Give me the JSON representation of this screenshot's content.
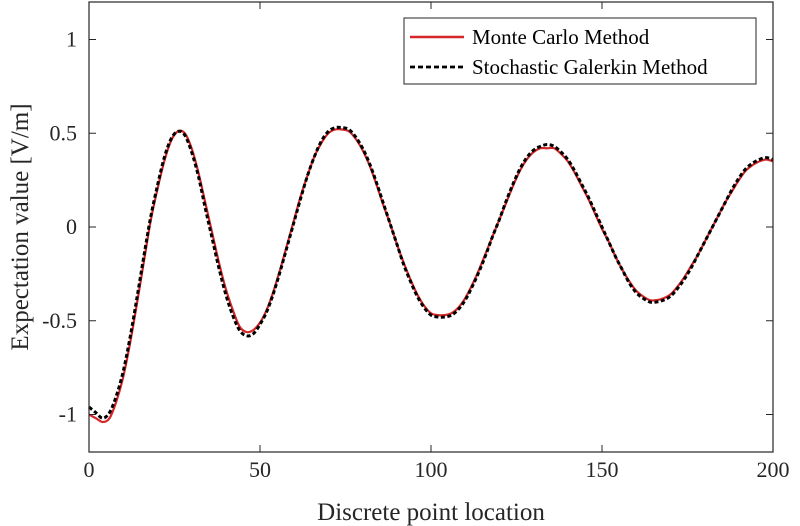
{
  "chart_data": {
    "type": "line",
    "xlabel": "Discrete point location",
    "ylabel": "Expectation value [V/m]",
    "xlim": [
      0,
      200
    ],
    "ylim": [
      -1.2,
      1.2
    ],
    "xticks": [
      0,
      50,
      100,
      150,
      200
    ],
    "yticks": [
      -1,
      -0.5,
      0,
      0.5,
      1
    ],
    "xtick_labels": [
      "0",
      "50",
      "100",
      "150",
      "200"
    ],
    "ytick_labels": [
      "-1",
      "-0.5",
      "0",
      "0.5",
      "1"
    ],
    "grid": false,
    "legend_position": "top-right",
    "series": [
      {
        "name": "Monte Carlo Method",
        "color": "#d62728",
        "style": "solid",
        "x": [
          0,
          2,
          4,
          6,
          8,
          10,
          12,
          14,
          16,
          18,
          20,
          22,
          24,
          26,
          28,
          30,
          32,
          34,
          36,
          38,
          40,
          42,
          44,
          46,
          48,
          50,
          52,
          54,
          56,
          58,
          60,
          62,
          64,
          66,
          68,
          70,
          72,
          74,
          76,
          78,
          80,
          82,
          84,
          86,
          88,
          90,
          92,
          94,
          96,
          98,
          100,
          102,
          104,
          106,
          108,
          110,
          112,
          114,
          116,
          118,
          120,
          122,
          124,
          126,
          128,
          130,
          132,
          134,
          136,
          138,
          140,
          142,
          144,
          146,
          148,
          150,
          152,
          154,
          156,
          158,
          160,
          162,
          164,
          166,
          168,
          170,
          172,
          174,
          176,
          178,
          180,
          182,
          184,
          186,
          188,
          190,
          192,
          194,
          196,
          198,
          200
        ],
        "y": [
          -1.0,
          -1.02,
          -1.04,
          -1.02,
          -0.93,
          -0.8,
          -0.62,
          -0.41,
          -0.19,
          0.03,
          0.2,
          0.35,
          0.46,
          0.51,
          0.5,
          0.42,
          0.29,
          0.13,
          -0.03,
          -0.19,
          -0.33,
          -0.44,
          -0.53,
          -0.56,
          -0.55,
          -0.51,
          -0.44,
          -0.34,
          -0.22,
          -0.09,
          0.04,
          0.17,
          0.28,
          0.38,
          0.45,
          0.5,
          0.52,
          0.52,
          0.51,
          0.47,
          0.41,
          0.33,
          0.23,
          0.12,
          0.02,
          -0.09,
          -0.19,
          -0.28,
          -0.36,
          -0.42,
          -0.46,
          -0.47,
          -0.47,
          -0.46,
          -0.43,
          -0.38,
          -0.31,
          -0.23,
          -0.14,
          -0.05,
          0.04,
          0.13,
          0.22,
          0.3,
          0.36,
          0.4,
          0.42,
          0.42,
          0.42,
          0.39,
          0.35,
          0.29,
          0.22,
          0.15,
          0.07,
          -0.01,
          -0.08,
          -0.16,
          -0.23,
          -0.29,
          -0.34,
          -0.37,
          -0.39,
          -0.39,
          -0.38,
          -0.36,
          -0.32,
          -0.27,
          -0.21,
          -0.15,
          -0.08,
          -0.01,
          0.06,
          0.13,
          0.19,
          0.25,
          0.3,
          0.33,
          0.35,
          0.36,
          0.35
        ]
      },
      {
        "name": "Stochastic Galerkin Method",
        "color": "#000000",
        "style": "dashed",
        "x": [
          0,
          2,
          4,
          6,
          8,
          10,
          12,
          14,
          16,
          18,
          20,
          22,
          24,
          26,
          28,
          30,
          32,
          34,
          36,
          38,
          40,
          42,
          44,
          46,
          48,
          50,
          52,
          54,
          56,
          58,
          60,
          62,
          64,
          66,
          68,
          70,
          72,
          74,
          76,
          78,
          80,
          82,
          84,
          86,
          88,
          90,
          92,
          94,
          96,
          98,
          100,
          102,
          104,
          106,
          108,
          110,
          112,
          114,
          116,
          118,
          120,
          122,
          124,
          126,
          128,
          130,
          132,
          134,
          136,
          138,
          140,
          142,
          144,
          146,
          148,
          150,
          152,
          154,
          156,
          158,
          160,
          162,
          164,
          166,
          168,
          170,
          172,
          174,
          176,
          178,
          180,
          182,
          184,
          186,
          188,
          190,
          192,
          194,
          196,
          198,
          200
        ],
        "y": [
          -0.96,
          -0.99,
          -1.02,
          -0.99,
          -0.9,
          -0.77,
          -0.59,
          -0.38,
          -0.16,
          0.05,
          0.22,
          0.37,
          0.47,
          0.51,
          0.49,
          0.4,
          0.27,
          0.1,
          -0.06,
          -0.22,
          -0.36,
          -0.47,
          -0.55,
          -0.58,
          -0.57,
          -0.52,
          -0.45,
          -0.35,
          -0.23,
          -0.1,
          0.03,
          0.16,
          0.28,
          0.38,
          0.46,
          0.51,
          0.53,
          0.53,
          0.52,
          0.48,
          0.42,
          0.34,
          0.24,
          0.13,
          0.02,
          -0.09,
          -0.2,
          -0.29,
          -0.37,
          -0.43,
          -0.47,
          -0.48,
          -0.48,
          -0.47,
          -0.44,
          -0.39,
          -0.32,
          -0.24,
          -0.15,
          -0.05,
          0.04,
          0.14,
          0.23,
          0.31,
          0.37,
          0.41,
          0.43,
          0.44,
          0.43,
          0.4,
          0.36,
          0.3,
          0.23,
          0.16,
          0.08,
          0.0,
          -0.08,
          -0.16,
          -0.23,
          -0.3,
          -0.35,
          -0.38,
          -0.4,
          -0.4,
          -0.39,
          -0.37,
          -0.33,
          -0.28,
          -0.22,
          -0.15,
          -0.08,
          -0.01,
          0.06,
          0.13,
          0.2,
          0.26,
          0.31,
          0.34,
          0.36,
          0.37,
          0.36
        ]
      }
    ]
  }
}
